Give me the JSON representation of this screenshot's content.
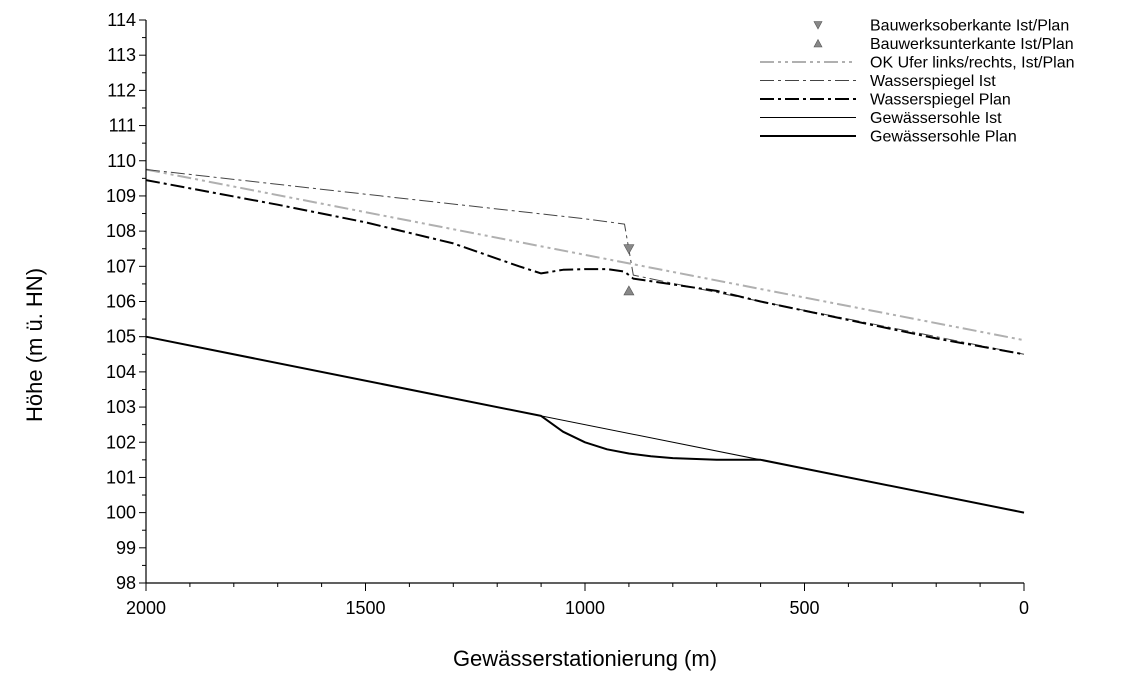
{
  "chart_data": {
    "type": "line",
    "title": "",
    "xlabel": "Gewässerstationierung (m)",
    "ylabel": "Höhe (m ü. HN)",
    "xlim": [
      2000,
      0
    ],
    "ylim": [
      98,
      114
    ],
    "x_reversed": true,
    "x_ticks": [
      2000,
      1500,
      1000,
      500,
      0
    ],
    "y_ticks": [
      98,
      99,
      100,
      101,
      102,
      103,
      104,
      105,
      106,
      107,
      108,
      109,
      110,
      111,
      112,
      113,
      114
    ],
    "grid": false,
    "legend_position": "top-right",
    "series": [
      {
        "name": "Bauwerksoberkante Ist/Plan",
        "kind": "marker-down",
        "color": "#888888",
        "points": [
          [
            900,
            107.5
          ]
        ]
      },
      {
        "name": "Bauwerksunterkante Ist/Plan",
        "kind": "marker-up",
        "color": "#888888",
        "points": [
          [
            900,
            106.3
          ]
        ]
      },
      {
        "name": "OK Ufer links/rechts, Ist/Plan",
        "kind": "line",
        "style": "dash-dot-dot",
        "color": "#b0b0b0",
        "width": 2,
        "points": [
          [
            2000,
            109.75
          ],
          [
            0,
            104.9
          ]
        ]
      },
      {
        "name": "Wasserspiegel Ist",
        "kind": "line",
        "style": "dash-dot",
        "color": "#444444",
        "width": 1,
        "points": [
          [
            2000,
            109.75
          ],
          [
            1500,
            109.05
          ],
          [
            1000,
            108.35
          ],
          [
            910,
            108.2
          ],
          [
            890,
            106.75
          ],
          [
            600,
            106.0
          ],
          [
            0,
            104.5
          ]
        ]
      },
      {
        "name": "Wasserspiegel Plan",
        "kind": "line",
        "style": "dash-dot",
        "color": "#000000",
        "width": 2,
        "points": [
          [
            2000,
            109.45
          ],
          [
            1700,
            108.75
          ],
          [
            1500,
            108.25
          ],
          [
            1300,
            107.65
          ],
          [
            1150,
            107.0
          ],
          [
            1100,
            106.8
          ],
          [
            1050,
            106.9
          ],
          [
            1000,
            106.92
          ],
          [
            950,
            106.92
          ],
          [
            910,
            106.85
          ],
          [
            890,
            106.65
          ],
          [
            700,
            106.3
          ],
          [
            600,
            106.0
          ],
          [
            200,
            104.95
          ],
          [
            0,
            104.5
          ]
        ]
      },
      {
        "name": "Gewässersohle Ist",
        "kind": "line",
        "style": "solid",
        "color": "#000000",
        "width": 1,
        "points": [
          [
            2000,
            105.0
          ],
          [
            0,
            100.0
          ]
        ]
      },
      {
        "name": "Gewässersohle Plan",
        "kind": "line",
        "style": "solid",
        "color": "#000000",
        "width": 2,
        "points": [
          [
            2000,
            105.0
          ],
          [
            1100,
            102.75
          ],
          [
            1050,
            102.3
          ],
          [
            1000,
            102.0
          ],
          [
            950,
            101.8
          ],
          [
            900,
            101.68
          ],
          [
            850,
            101.6
          ],
          [
            800,
            101.55
          ],
          [
            700,
            101.5
          ],
          [
            600,
            101.5
          ],
          [
            0,
            100.0
          ]
        ]
      }
    ]
  }
}
